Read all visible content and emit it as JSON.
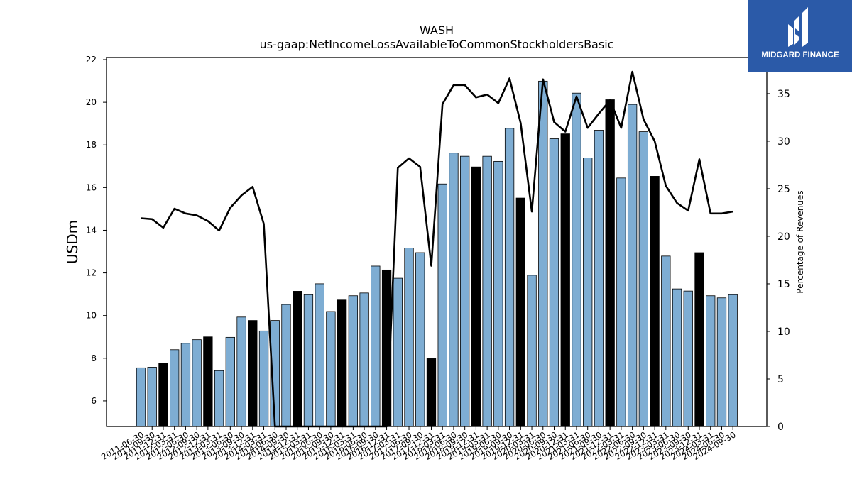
{
  "chart_data": {
    "type": "bar+line",
    "title": "WASH",
    "subtitle": "us-gaap:NetIncomeLossAvailableToCommonStockholdersBasic",
    "ylabel": "USDm",
    "ylabel_right": "Percentage of Revenues",
    "ylim": [
      4.8,
      22.1
    ],
    "ylim_right": [
      0,
      38.8
    ],
    "yticks": [
      6,
      8,
      10,
      12,
      14,
      16,
      18,
      20,
      22
    ],
    "yticks_right": [
      0,
      5,
      10,
      15,
      20,
      25,
      30,
      35
    ],
    "categories": [
      "2011-06-30",
      "2011-09-30",
      "2011-12-31",
      "2012-03-31",
      "2012-06-30",
      "2012-09-30",
      "2012-12-31",
      "2013-03-31",
      "2013-06-30",
      "2013-09-30",
      "2013-12-31",
      "2014-03-31",
      "2014-06-30",
      "2014-09-30",
      "2014-12-31",
      "2015-03-31",
      "2015-06-30",
      "2015-09-30",
      "2015-12-31",
      "2016-03-31",
      "2016-06-30",
      "2016-09-30",
      "2016-12-31",
      "2017-03-31",
      "2017-06-30",
      "2017-09-30",
      "2017-12-31",
      "2018-03-31",
      "2018-06-30",
      "2018-09-30",
      "2018-12-31",
      "2019-03-31",
      "2019-06-30",
      "2019-09-30",
      "2019-12-31",
      "2020-03-31",
      "2020-06-30",
      "2020-09-30",
      "2020-12-31",
      "2021-03-31",
      "2021-06-30",
      "2021-09-30",
      "2021-12-31",
      "2022-03-31",
      "2022-06-30",
      "2022-09-30",
      "2022-12-31",
      "2023-03-31",
      "2023-06-30",
      "2023-09-30",
      "2023-12-31",
      "2024-03-31",
      "2024-06-30",
      "2024-09-30"
    ],
    "series": [
      {
        "kind": "bar",
        "values": [
          7.55,
          7.58,
          7.78,
          8.4,
          8.7,
          8.87,
          9.0,
          7.42,
          8.98,
          9.93,
          9.77,
          9.28,
          9.77,
          10.52,
          11.14,
          10.98,
          11.49,
          10.19,
          10.73,
          10.93,
          11.06,
          12.32,
          12.14,
          11.75,
          13.17,
          12.95,
          7.98,
          16.17,
          17.62,
          17.47,
          16.97,
          17.47,
          17.23,
          18.78,
          15.51,
          11.89,
          20.99,
          18.29,
          18.52,
          20.43,
          17.39,
          18.69,
          20.12,
          16.45,
          19.9,
          18.62,
          16.53,
          12.79,
          11.25,
          11.15,
          12.95,
          10.93,
          10.83,
          10.98
        ],
        "highlight": [
          false,
          false,
          true,
          false,
          false,
          false,
          true,
          false,
          false,
          false,
          true,
          false,
          false,
          false,
          true,
          false,
          false,
          false,
          true,
          false,
          false,
          false,
          true,
          false,
          false,
          false,
          true,
          false,
          false,
          false,
          true,
          false,
          false,
          false,
          true,
          false,
          false,
          false,
          true,
          false,
          false,
          false,
          true,
          false,
          false,
          false,
          true,
          false,
          false,
          false,
          true,
          false,
          false,
          false
        ],
        "color": "#7eadd3",
        "highlight_color": "#000000"
      },
      {
        "kind": "line",
        "axis": "right",
        "color": "#000000",
        "values": [
          21.9,
          21.8,
          20.9,
          22.9,
          22.4,
          22.2,
          21.6,
          20.6,
          23.0,
          24.3,
          25.2,
          21.3,
          0,
          0,
          0,
          0,
          0,
          0,
          0,
          0,
          0,
          0,
          0,
          27.2,
          28.2,
          27.3,
          16.9,
          33.9,
          35.9,
          35.9,
          34.6,
          34.9,
          34.0,
          36.6,
          31.9,
          22.6,
          36.5,
          32.0,
          31.0,
          34.7,
          31.4,
          32.9,
          34.3,
          31.4,
          37.3,
          32.3,
          30.0,
          25.3,
          23.5,
          22.7,
          28.1,
          22.4,
          22.4,
          22.6
        ]
      }
    ]
  },
  "logo": {
    "text": "MIDGARD FINANCE",
    "color": "#2b5aa8"
  }
}
